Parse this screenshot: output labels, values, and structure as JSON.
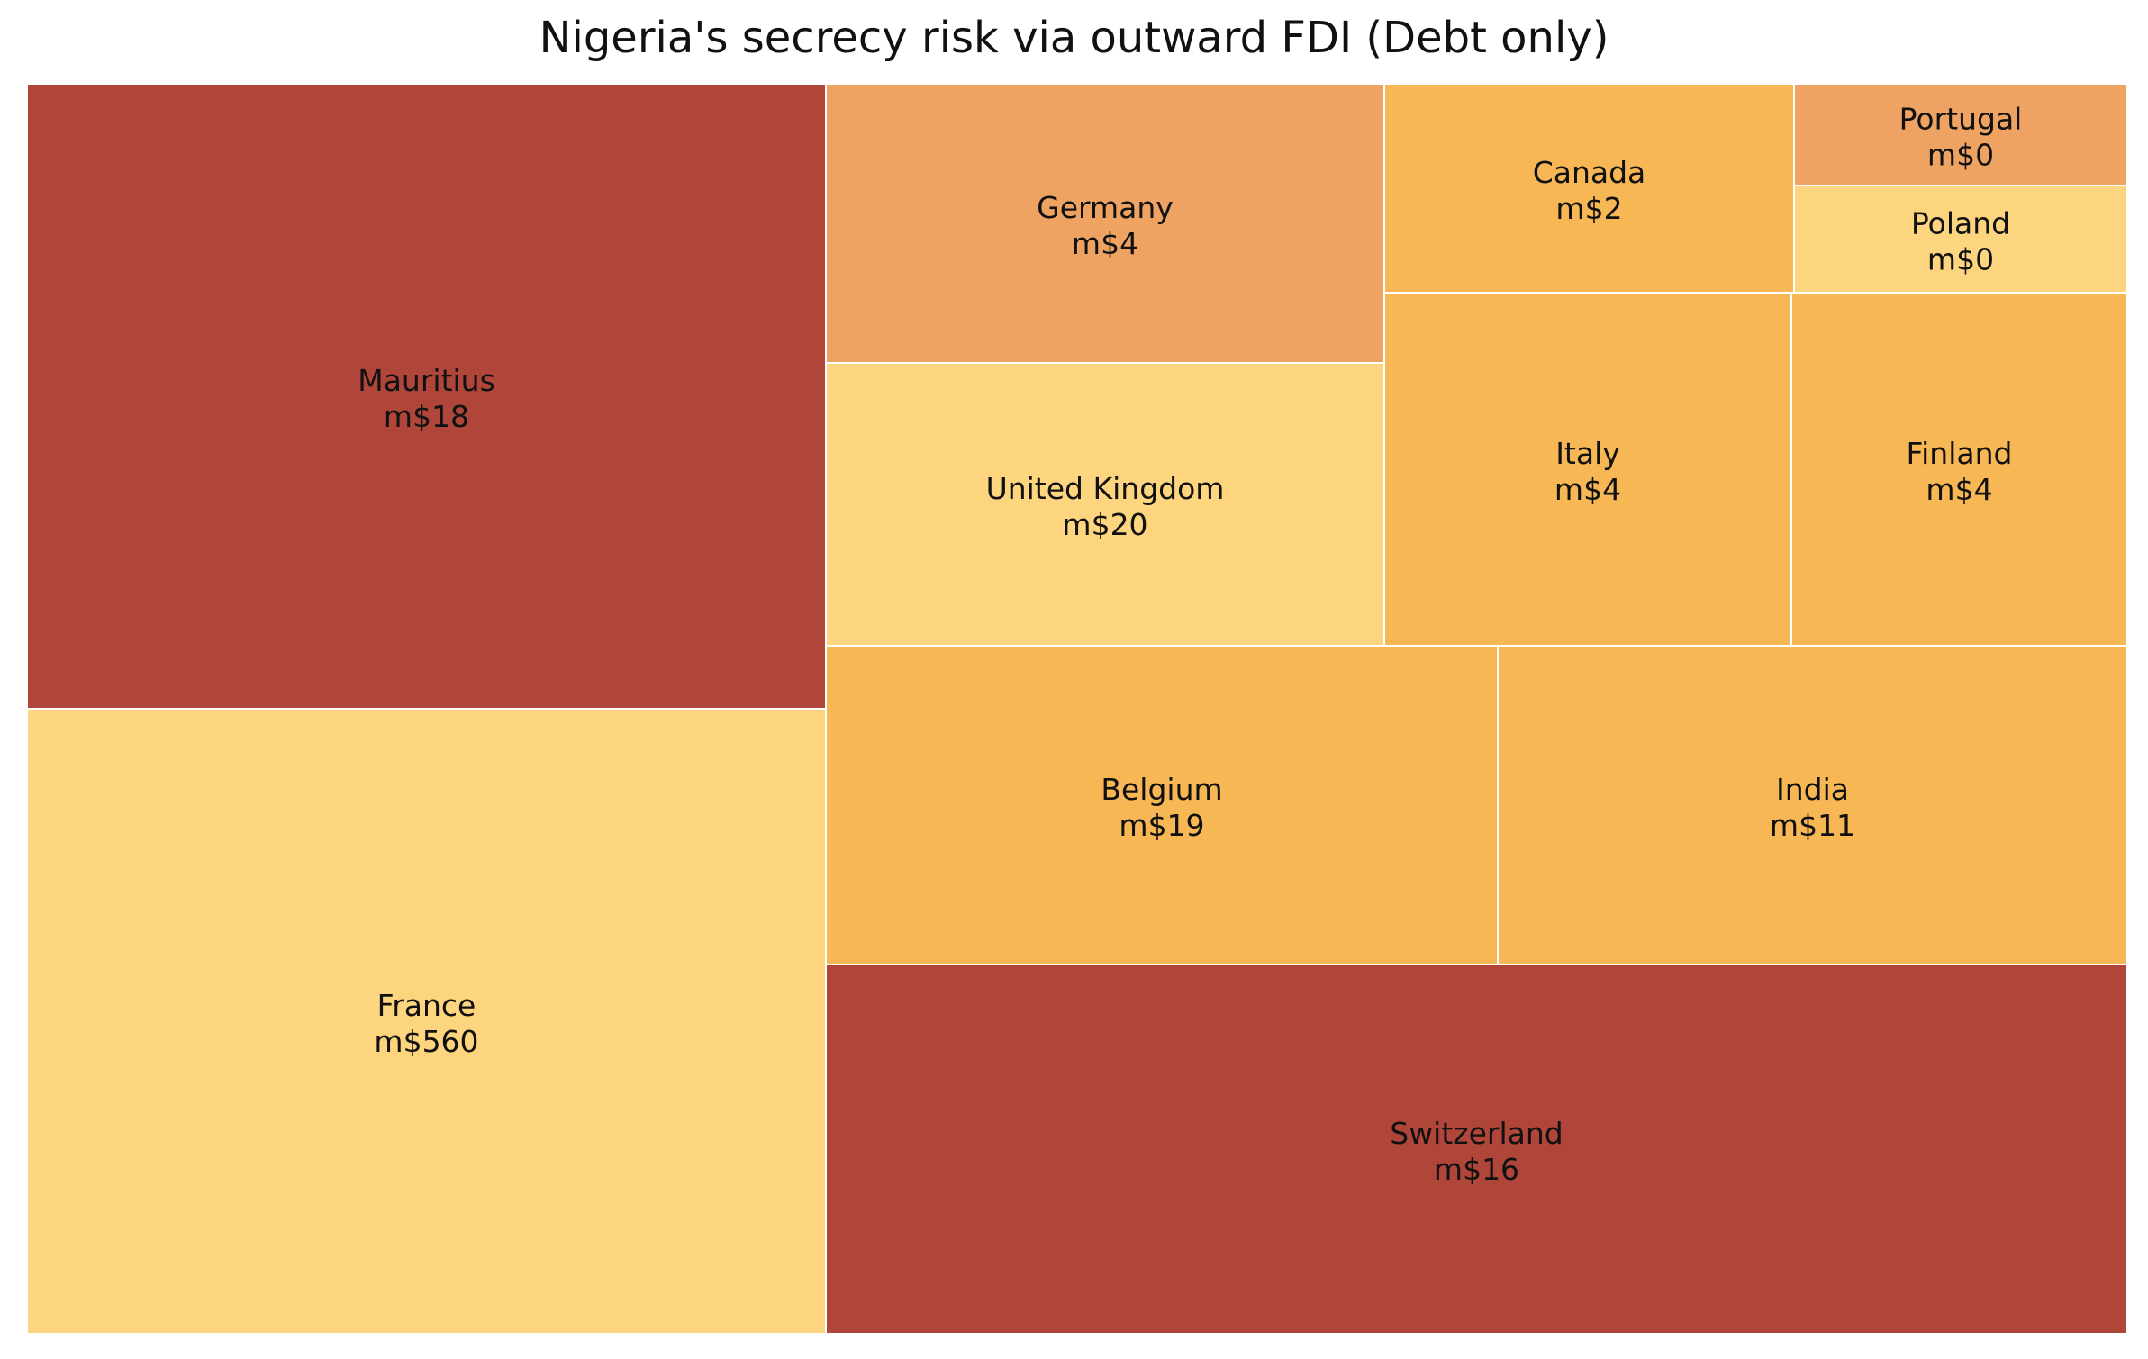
{
  "chart_data": {
    "type": "treemap",
    "title": "Nigeria's secrecy risk via outward FDI (Debt only)",
    "colors": {
      "dark_red": "#b0463a",
      "light_orange": "#eea363",
      "orange": "#f7b755",
      "yellow": "#fdd57e",
      "border": "#ffffff"
    },
    "items": [
      {
        "name": "Mauritius",
        "label": "m$18",
        "color": "#b0463a"
      },
      {
        "name": "France",
        "label": "m$560",
        "color": "#fdd57e"
      },
      {
        "name": "Germany",
        "label": "m$4",
        "color": "#eea363"
      },
      {
        "name": "United Kingdom",
        "label": "m$20",
        "color": "#fdd57e"
      },
      {
        "name": "Canada",
        "label": "m$2",
        "color": "#f7b755"
      },
      {
        "name": "Portugal",
        "label": "m$0",
        "color": "#eea363"
      },
      {
        "name": "Poland",
        "label": "m$0",
        "color": "#fdd57e"
      },
      {
        "name": "Italy",
        "label": "m$4",
        "color": "#f7b755"
      },
      {
        "name": "Finland",
        "label": "m$4",
        "color": "#f7b755"
      },
      {
        "name": "Belgium",
        "label": "m$19",
        "color": "#f7b755"
      },
      {
        "name": "India",
        "label": "m$11",
        "color": "#f7b755"
      },
      {
        "name": "Switzerland",
        "label": "m$16",
        "color": "#b0463a"
      }
    ]
  }
}
